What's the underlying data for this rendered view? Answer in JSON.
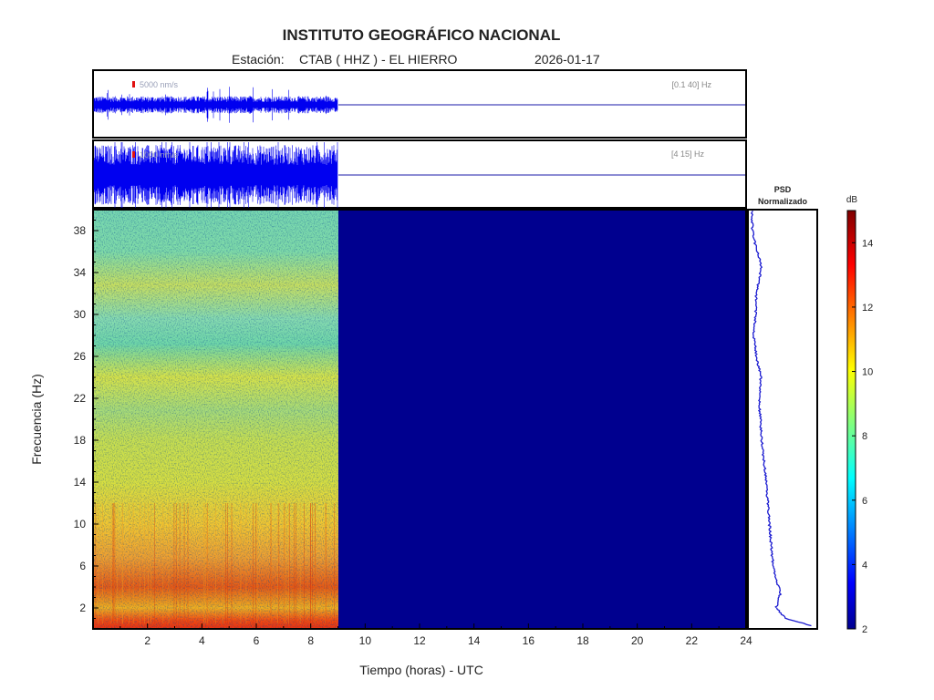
{
  "header": {
    "title": "INSTITUTO GEOGRÁFICO NACIONAL",
    "station_label": "Estación:",
    "station": "CTAB ( HHZ ) - EL HIERRO",
    "date": "2026-01-17"
  },
  "chart_data": [
    {
      "type": "line",
      "panel": "seismogram-broadband",
      "band_label": "[0.1 40] Hz",
      "scale_label": "5000 nm/s",
      "data_end_hour": 9.0,
      "x_range": [
        0,
        24
      ]
    },
    {
      "type": "line",
      "panel": "seismogram-filtered",
      "band_label": "[4 15] Hz",
      "scale_label": "1000 nm/s",
      "data_end_hour": 9.0,
      "x_range": [
        0,
        24
      ]
    },
    {
      "type": "heatmap",
      "panel": "spectrogram",
      "xlabel": "Tiempo (horas) - UTC",
      "ylabel": "Frecuencia  (Hz)",
      "x_ticks": [
        2,
        4,
        6,
        8,
        10,
        12,
        14,
        16,
        18,
        20,
        22,
        24
      ],
      "y_ticks": [
        2,
        6,
        10,
        14,
        18,
        22,
        26,
        30,
        34,
        38
      ],
      "xlim": [
        0,
        24
      ],
      "ylim": [
        0,
        40
      ],
      "data_end_hour": 9.0,
      "colorbar": {
        "label": "dB",
        "ticks": [
          2,
          4,
          6,
          8,
          10,
          12,
          14
        ],
        "range": [
          2,
          15
        ]
      }
    },
    {
      "type": "line",
      "panel": "psd",
      "title_line1": "PSD",
      "title_line2": "Normalizado",
      "ylim": [
        0,
        40
      ],
      "profile": [
        {
          "f": 0.3,
          "v": 0.95
        },
        {
          "f": 1.0,
          "v": 0.55
        },
        {
          "f": 2.0,
          "v": 0.4
        },
        {
          "f": 3.5,
          "v": 0.47
        },
        {
          "f": 5.0,
          "v": 0.38
        },
        {
          "f": 7.0,
          "v": 0.34
        },
        {
          "f": 10.0,
          "v": 0.3
        },
        {
          "f": 14.0,
          "v": 0.25
        },
        {
          "f": 18.0,
          "v": 0.18
        },
        {
          "f": 22.0,
          "v": 0.14
        },
        {
          "f": 24.0,
          "v": 0.17
        },
        {
          "f": 26.0,
          "v": 0.1
        },
        {
          "f": 28.0,
          "v": 0.06
        },
        {
          "f": 30.0,
          "v": 0.09
        },
        {
          "f": 32.0,
          "v": 0.1
        },
        {
          "f": 34.5,
          "v": 0.18
        },
        {
          "f": 36.5,
          "v": 0.09
        },
        {
          "f": 38.0,
          "v": 0.04
        },
        {
          "f": 40.0,
          "v": 0.03
        }
      ]
    }
  ]
}
